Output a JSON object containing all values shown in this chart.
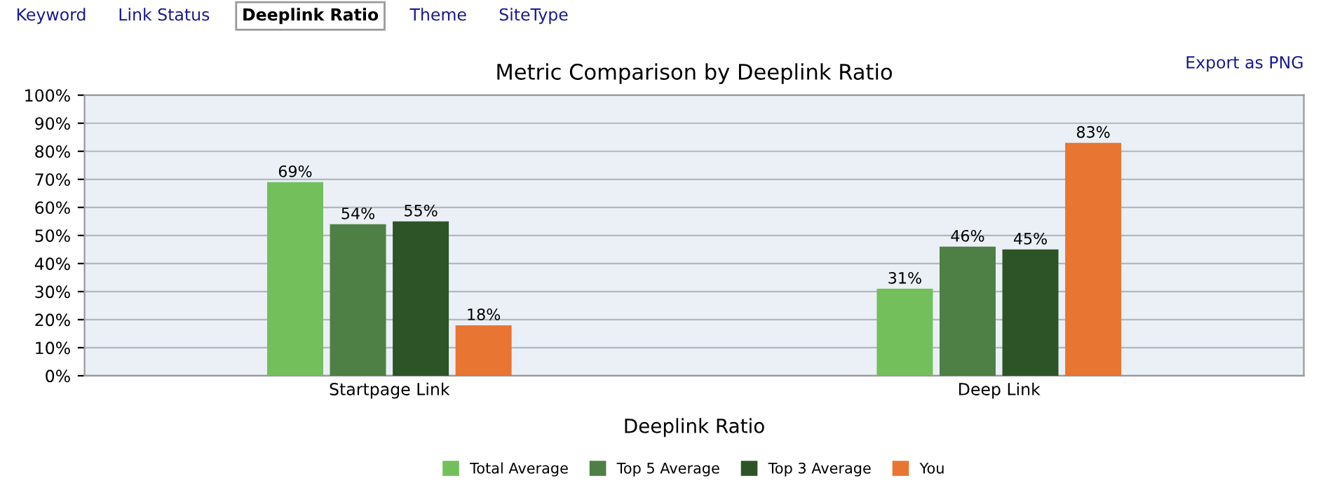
{
  "chart_data": {
    "type": "bar",
    "title": "Metric Comparison by Deeplink Ratio",
    "xlabel": "Deeplink Ratio",
    "categories": [
      "Startpage Link",
      "Deep Link"
    ],
    "series": [
      {
        "name": "Total Average",
        "color": "#73bf5c",
        "values": [
          69,
          31
        ],
        "value_labels": [
          "69%",
          "31%"
        ]
      },
      {
        "name": "Top 5 Average",
        "color": "#4e7f45",
        "values": [
          54,
          46
        ],
        "value_labels": [
          "54%",
          "46%"
        ]
      },
      {
        "name": "Top 3 Average",
        "color": "#2d5427",
        "values": [
          55,
          45
        ],
        "value_labels": [
          "55%",
          "45%"
        ]
      },
      {
        "name": "You",
        "color": "#e87532",
        "values": [
          18,
          83
        ],
        "value_labels": [
          "18%",
          "83%"
        ]
      }
    ],
    "ylim": [
      0,
      100
    ],
    "yticks": [
      {
        "value": 0,
        "label": "0%"
      },
      {
        "value": 10,
        "label": "10%"
      },
      {
        "value": 20,
        "label": "20%"
      },
      {
        "value": 30,
        "label": "30%"
      },
      {
        "value": 40,
        "label": "40%"
      },
      {
        "value": 50,
        "label": "50%"
      },
      {
        "value": 60,
        "label": "60%"
      },
      {
        "value": 70,
        "label": "70%"
      },
      {
        "value": 80,
        "label": "80%"
      },
      {
        "value": 90,
        "label": "90%"
      },
      {
        "value": 100,
        "label": "100%"
      }
    ],
    "grid": "y",
    "legend": "bottom",
    "annotations": [
      "Keyword",
      "Link Status",
      "Deeplink Ratio",
      "Theme",
      "SiteType",
      "Export as PNG"
    ]
  }
}
